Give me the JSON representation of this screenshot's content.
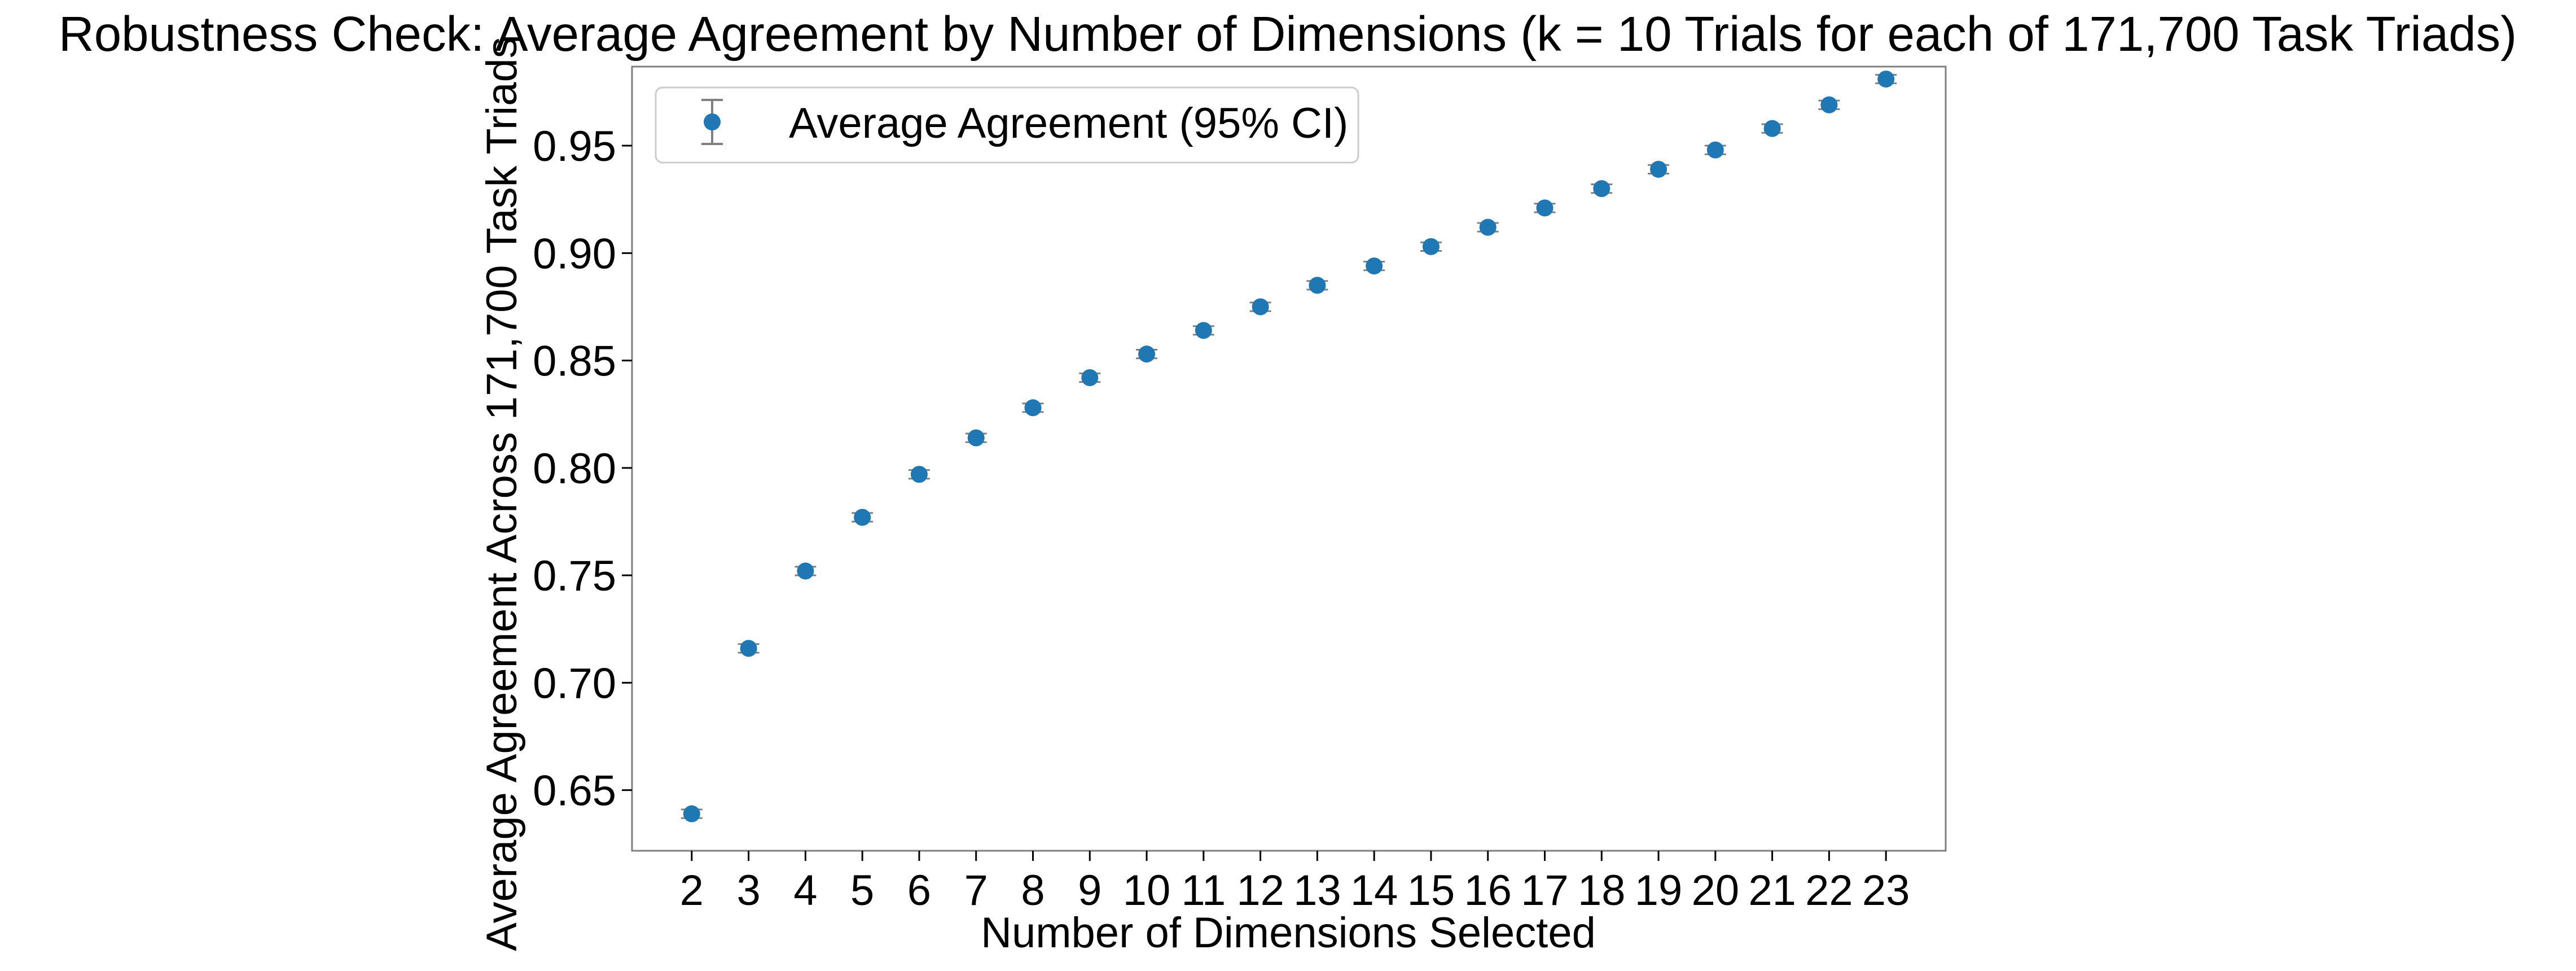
{
  "chart_data": {
    "type": "scatter",
    "title": "Robustness Check: Average Agreement by Number of Dimensions (k = 10 Trials for each of 171,700 Task Triads)",
    "xlabel": "Number of Dimensions Selected",
    "ylabel": "Average Agreement Across 171,700 Task Triads",
    "x": [
      2,
      3,
      4,
      5,
      6,
      7,
      8,
      9,
      10,
      11,
      12,
      13,
      14,
      15,
      16,
      17,
      18,
      19,
      20,
      21,
      22,
      23
    ],
    "series": [
      {
        "name": "Average Agreement (95% CI)",
        "values": [
          0.639,
          0.716,
          0.752,
          0.777,
          0.797,
          0.814,
          0.828,
          0.842,
          0.853,
          0.864,
          0.875,
          0.885,
          0.894,
          0.903,
          0.912,
          0.921,
          0.93,
          0.939,
          0.948,
          0.958,
          0.969,
          0.981
        ],
        "ci_halfwidth": [
          0.002,
          0.002,
          0.002,
          0.002,
          0.002,
          0.002,
          0.002,
          0.002,
          0.002,
          0.002,
          0.002,
          0.002,
          0.002,
          0.002,
          0.002,
          0.002,
          0.002,
          0.002,
          0.002,
          0.002,
          0.002,
          0.002
        ],
        "color": "#1f77b4",
        "errorbar_color": "#808080"
      }
    ],
    "x_ticks": [
      2,
      3,
      4,
      5,
      6,
      7,
      8,
      9,
      10,
      11,
      12,
      13,
      14,
      15,
      16,
      17,
      18,
      19,
      20,
      21,
      22,
      23
    ],
    "y_ticks": [
      0.65,
      0.7,
      0.75,
      0.8,
      0.85,
      0.9,
      0.95
    ],
    "y_tick_labels": [
      "0.65",
      "0.70",
      "0.75",
      "0.80",
      "0.85",
      "0.90",
      "0.95"
    ],
    "xlim": [
      0.95,
      24.05
    ],
    "ylim": [
      0.6218,
      0.9868
    ],
    "grid": false,
    "legend": "upper-left"
  }
}
